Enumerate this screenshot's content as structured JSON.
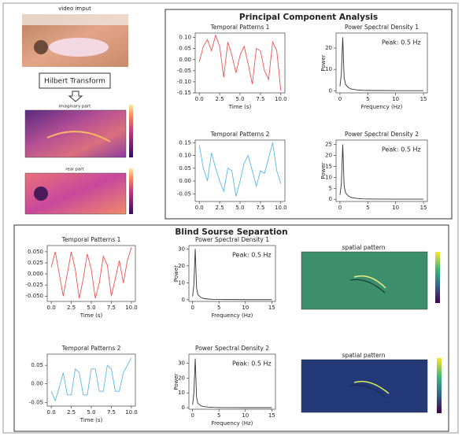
{
  "left": {
    "input_label": "video imput",
    "transform": "Hilbert Transform",
    "imaginary_label": "imaginary part",
    "real_label": "real part"
  },
  "pca_title": "Principal Component Analysis",
  "bss_title": "Blind Sourse Separation",
  "spatial_labels": [
    "spatial pattern",
    "spatial pattern"
  ],
  "chart_data": [
    {
      "type": "line",
      "title": "Temporal Patterns 1",
      "x_label": "Time (s)",
      "x": [
        0,
        0.5,
        1,
        1.5,
        2,
        2.5,
        3,
        3.5,
        4,
        4.5,
        5,
        5.5,
        6,
        6.5,
        7,
        7.5,
        8,
        8.5,
        9,
        9.5,
        10
      ],
      "series": [
        {
          "color": "#ef5350",
          "values": [
            -0.01,
            0.06,
            0.09,
            0.04,
            0.11,
            0.06,
            -0.08,
            0.08,
            0.02,
            -0.06,
            0.02,
            0.06,
            -0.02,
            -0.11,
            0.05,
            0.04,
            -0.05,
            -0.09,
            0.08,
            0.04,
            -0.14
          ]
        }
      ],
      "xlim": [
        -0.5,
        10.5
      ],
      "ylim": [
        -0.15,
        0.12
      ],
      "xticks": [
        {
          "value": 0,
          "label": "0.0"
        },
        2.5,
        {
          "value": 5,
          "label": "5.0"
        },
        7.5,
        {
          "value": 10,
          "label": "10.0"
        }
      ],
      "yticks": [
        -0.15,
        {
          "value": -0.1,
          "label": "-0.10"
        },
        -0.05,
        {
          "value": 0,
          "label": "0.00"
        },
        0.05,
        {
          "value": 0.1,
          "label": "0.10"
        }
      ]
    },
    {
      "type": "line",
      "title": "Power Spectral Density 1",
      "x_label": "Frequency (Hz)",
      "y_label": "Power",
      "annotation": "Peak: 0.5 Hz",
      "x": [
        0,
        0.25,
        0.5,
        0.75,
        1,
        1.5,
        2,
        3,
        4,
        6,
        8,
        10,
        12,
        15
      ],
      "series": [
        {
          "color": "#333333",
          "values": [
            2,
            8,
            25,
            6,
            3,
            1.5,
            0.8,
            0.4,
            0.2,
            0.1,
            0.1,
            0.05,
            0.05,
            0.05
          ]
        }
      ],
      "xlim": [
        -0.7,
        15.7
      ],
      "ylim": [
        -1,
        27
      ],
      "xticks": [
        0,
        5,
        10,
        15
      ],
      "yticks": [
        0,
        10,
        20
      ]
    },
    {
      "type": "line",
      "title": "Temporal Patterns 2",
      "x": [
        0,
        0.5,
        1,
        1.5,
        2,
        2.5,
        3,
        3.5,
        4,
        4.5,
        5,
        5.5,
        6,
        6.5,
        7,
        7.5,
        8,
        8.5,
        9,
        9.5,
        10
      ],
      "series": [
        {
          "color": "#5cb8e6",
          "values": [
            0.14,
            0.05,
            0.0,
            0.11,
            0.05,
            0.0,
            -0.04,
            0.05,
            0.04,
            -0.06,
            0.0,
            0.07,
            0.1,
            0.04,
            -0.02,
            0.04,
            0.03,
            0.09,
            0.15,
            0.04,
            -0.01
          ]
        }
      ],
      "xlim": [
        -0.5,
        10.5
      ],
      "ylim": [
        -0.08,
        0.16
      ],
      "xticks": [
        {
          "value": 0,
          "label": "0.0"
        },
        2.5,
        {
          "value": 5,
          "label": "5.0"
        },
        7.5,
        {
          "value": 10,
          "label": "10.0"
        }
      ],
      "yticks": [
        -0.05,
        {
          "value": 0,
          "label": "0.00"
        },
        0.05,
        {
          "value": 0.1,
          "label": "0.10"
        },
        0.15
      ]
    },
    {
      "type": "line",
      "title": "Power Spectral Density 2",
      "y_label": "Power",
      "annotation": "Peak: 0.5 Hz",
      "x": [
        0,
        0.25,
        0.5,
        0.75,
        1,
        1.5,
        2,
        3,
        4,
        6,
        8,
        10,
        12,
        15
      ],
      "series": [
        {
          "color": "#333333",
          "values": [
            2,
            7,
            25,
            6,
            3,
            1.5,
            0.8,
            0.4,
            0.2,
            0.1,
            0.1,
            0.05,
            0.05,
            0.05
          ]
        }
      ],
      "xlim": [
        -0.7,
        15.7
      ],
      "ylim": [
        -1,
        27
      ],
      "xticks": [
        0,
        5,
        10,
        15
      ],
      "yticks": [
        0,
        5,
        10,
        15,
        20,
        25
      ]
    },
    {
      "type": "line",
      "title": "Temporal Patterns 1",
      "x_label": "Time (s)",
      "x": [
        0,
        0.5,
        1,
        1.5,
        2,
        2.5,
        3,
        3.5,
        4,
        4.5,
        5,
        5.5,
        6,
        6.5,
        7,
        7.5,
        8,
        8.5,
        9,
        9.5,
        10
      ],
      "series": [
        {
          "color": "#ef5350",
          "values": [
            0.015,
            0.05,
            0.0,
            -0.05,
            0.0,
            0.05,
            0.01,
            -0.055,
            -0.01,
            0.045,
            0.01,
            -0.055,
            -0.02,
            0.04,
            0.02,
            -0.05,
            -0.01,
            0.03,
            -0.02,
            0.03,
            0.06
          ]
        }
      ],
      "xlim": [
        -0.5,
        10.5
      ],
      "ylim": [
        -0.062,
        0.064
      ],
      "xticks": [
        {
          "value": 0,
          "label": "0.0"
        },
        2.5,
        {
          "value": 5,
          "label": "5.0"
        },
        7.5,
        {
          "value": 10,
          "label": "10.0"
        }
      ],
      "yticks": [
        {
          "value": -0.05,
          "label": "-0.050"
        },
        -0.025,
        {
          "value": 0,
          "label": "0.000"
        },
        0.025,
        {
          "value": 0.05,
          "label": "0.050"
        }
      ]
    },
    {
      "type": "line",
      "title": "Power Spectral Density 1",
      "x_label": "Frequency (Hz)",
      "y_label": "Power",
      "annotation": "Peak: 0.5 Hz",
      "x": [
        0,
        0.25,
        0.5,
        0.75,
        1,
        1.5,
        2,
        3,
        4,
        6,
        8,
        10,
        12,
        15
      ],
      "series": [
        {
          "color": "#333333",
          "values": [
            2,
            9,
            30,
            7,
            3,
            1.5,
            0.8,
            0.4,
            0.2,
            0.1,
            0.1,
            0.05,
            0.05,
            0.05
          ]
        }
      ],
      "xlim": [
        -0.7,
        15.7
      ],
      "ylim": [
        -1,
        32
      ],
      "xticks": [
        0,
        5,
        10,
        15
      ],
      "yticks": [
        0,
        10,
        20,
        30
      ]
    },
    {
      "type": "line",
      "title": "Temporal Patterns 2",
      "x_label": "Time (s)",
      "x": [
        0,
        0.5,
        1,
        1.5,
        2,
        2.5,
        3,
        3.5,
        4,
        4.5,
        5,
        5.5,
        6,
        6.5,
        7,
        7.5,
        8,
        8.5,
        9,
        9.5,
        10
      ],
      "series": [
        {
          "color": "#5cb8e6",
          "values": [
            -0.02,
            -0.045,
            -0.01,
            0.03,
            -0.03,
            -0.03,
            0.04,
            0.03,
            -0.03,
            -0.03,
            0.04,
            0.04,
            -0.02,
            -0.02,
            0.05,
            0.04,
            -0.02,
            -0.02,
            0.03,
            0.05,
            0.07
          ]
        }
      ],
      "xlim": [
        -0.5,
        10.5
      ],
      "ylim": [
        -0.06,
        0.08
      ],
      "xticks": [
        {
          "value": 0,
          "label": "0.0"
        },
        2.5,
        {
          "value": 5,
          "label": "5.0"
        },
        7.5,
        {
          "value": 10,
          "label": "10.0"
        }
      ],
      "yticks": [
        -0.05,
        {
          "value": 0,
          "label": "0.00"
        },
        0.05
      ]
    },
    {
      "type": "line",
      "title": "Power Spectral Density 2",
      "x_label": "Frequency (Hz)",
      "y_label": "Power",
      "annotation": "Peak: 0.5 Hz",
      "x": [
        0,
        0.25,
        0.5,
        0.75,
        1,
        1.5,
        2,
        3,
        4,
        6,
        8,
        10,
        12,
        15
      ],
      "series": [
        {
          "color": "#333333",
          "values": [
            2,
            10,
            33,
            7,
            3,
            1.5,
            0.8,
            0.4,
            0.2,
            0.1,
            0.1,
            0.05,
            0.05,
            0.05
          ]
        }
      ],
      "xlim": [
        -0.7,
        15.7
      ],
      "ylim": [
        -1,
        36
      ],
      "xticks": [
        0,
        5,
        10,
        15
      ],
      "yticks": [
        0,
        10,
        20,
        30
      ]
    }
  ]
}
